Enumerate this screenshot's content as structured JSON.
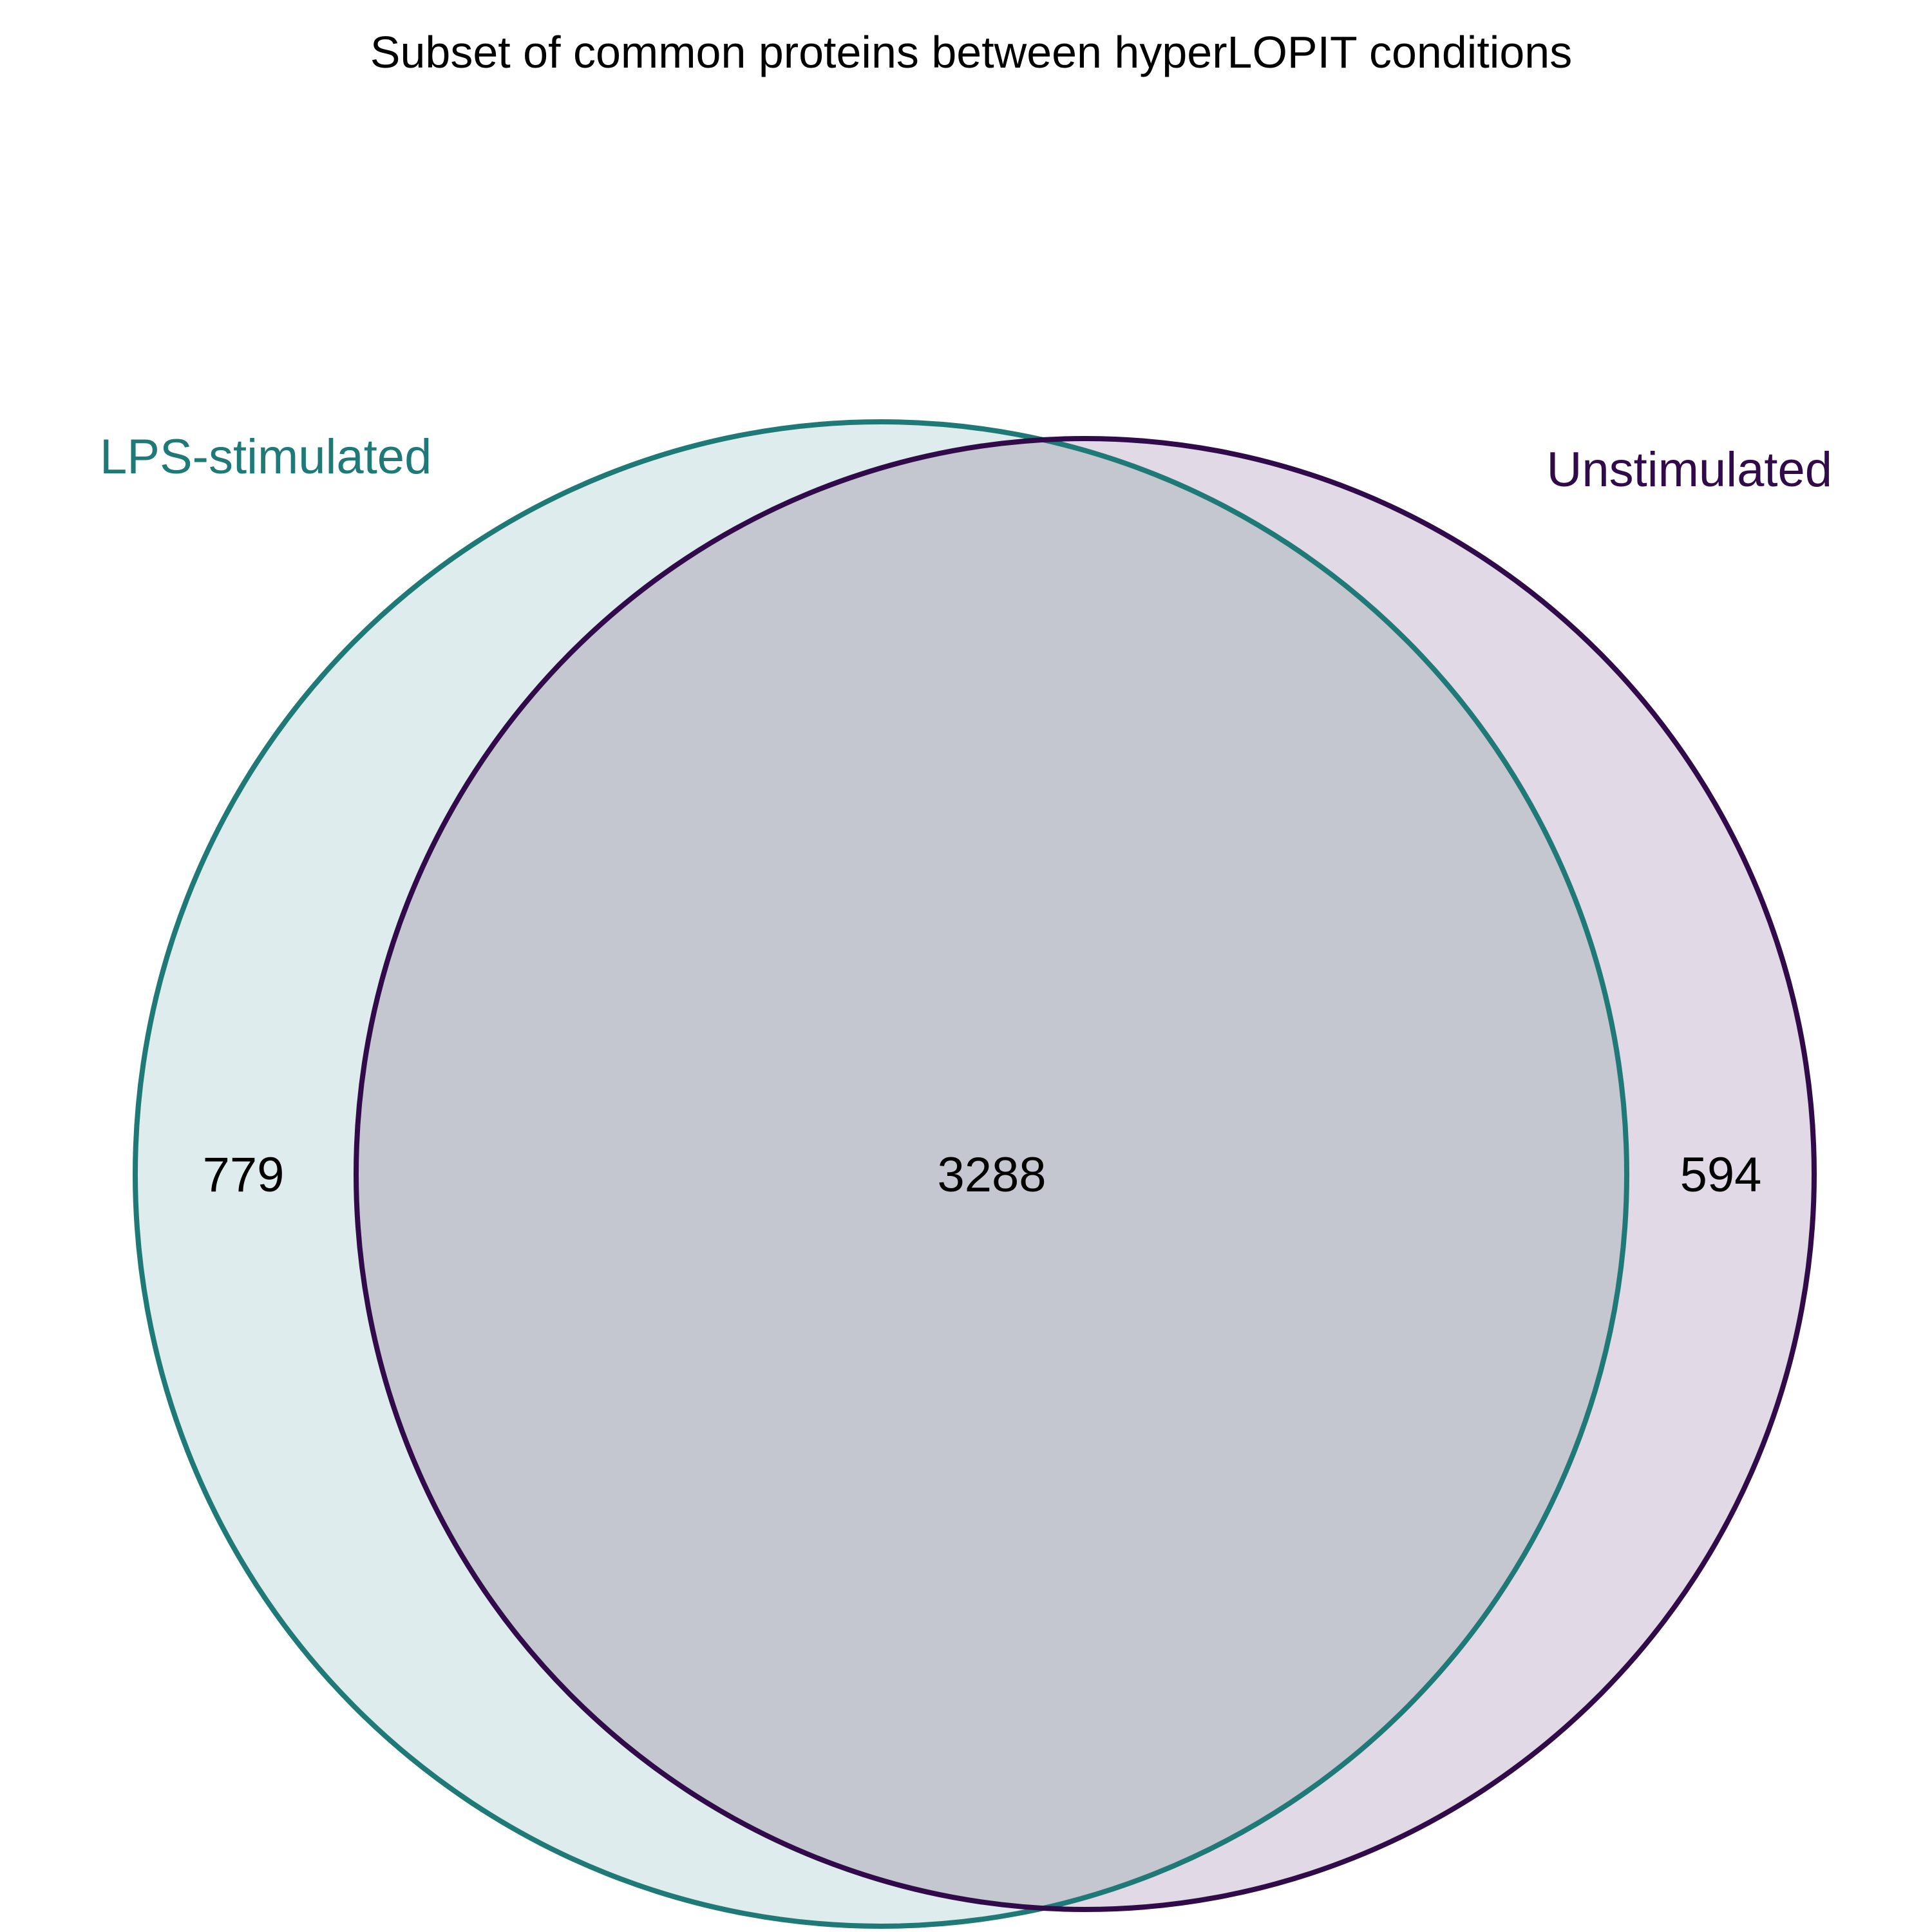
{
  "title": "Subset of common proteins between hyperLOPIT conditions",
  "sets": [
    {
      "key": "lps",
      "name": "LPS-stimulated",
      "stroke_color": "#1f7a77",
      "fill_color": "#dfeced"
    },
    {
      "key": "unstim",
      "name": "Unstimulated",
      "stroke_color": "#310a4a",
      "fill_color": "#e1d9e5"
    }
  ],
  "overlap_fill_color": "#c4c7cf",
  "regions": {
    "lps_only": "779",
    "both": "3288",
    "unstim_only": "594"
  }
}
